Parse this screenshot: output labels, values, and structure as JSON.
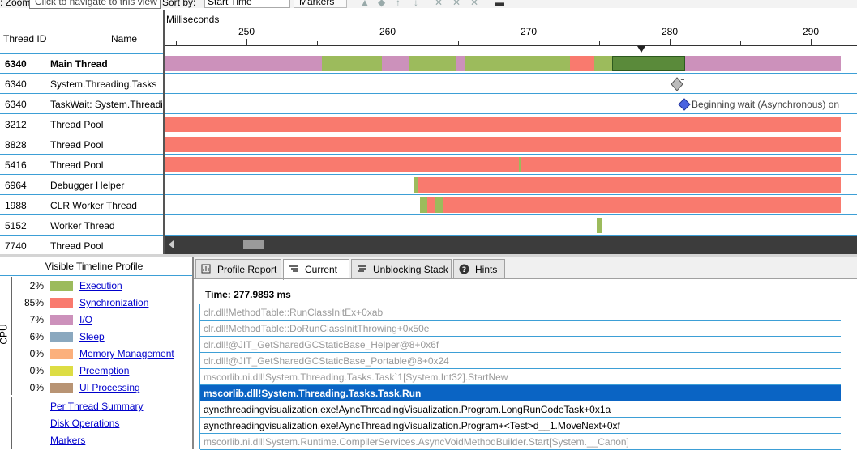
{
  "toolbar": {
    "zoom_label": ": Zoom",
    "tooltip": "Click to navigate to this view",
    "sort_label": "Sort by:",
    "sort_value": "Start Time",
    "markers_label": "Markers"
  },
  "timeline": {
    "col_thread_id": "Thread ID",
    "col_name": "Name",
    "axis_unit": "Milliseconds",
    "ticks": [
      "250",
      "260",
      "270",
      "280",
      "290"
    ],
    "threads": [
      {
        "id": "6340",
        "name": "Main Thread",
        "bold": true
      },
      {
        "id": "6340",
        "name": "System.Threading.Tasks"
      },
      {
        "id": "6340",
        "name": "TaskWait: System.Threading.Tasks"
      },
      {
        "id": "3212",
        "name": "Thread Pool"
      },
      {
        "id": "8828",
        "name": "Thread Pool"
      },
      {
        "id": "5416",
        "name": "Thread Pool"
      },
      {
        "id": "6964",
        "name": "Debugger Helper"
      },
      {
        "id": "1988",
        "name": "CLR Worker Thread"
      },
      {
        "id": "5152",
        "name": "Worker Thread"
      },
      {
        "id": "7740",
        "name": "Thread Pool"
      }
    ],
    "marker_text": "Beginning wait (Asynchronous) on"
  },
  "colors": {
    "execution": "#9cbb5c",
    "synchronization": "#f97a6e",
    "io": "#cc91bb",
    "sleep": "#8aa8bf",
    "memory": "#fbb07c",
    "preemption": "#dddd44",
    "ui": "#b89474",
    "selected_exec": "#5a8a3a"
  },
  "profile": {
    "title": "Visible Timeline Profile",
    "cpu_label": "CPU",
    "items": [
      {
        "pct": "2%",
        "label": "Execution",
        "color": "#9cbb5c"
      },
      {
        "pct": "85%",
        "label": "Synchronization",
        "color": "#f97a6e"
      },
      {
        "pct": "7%",
        "label": "I/O",
        "color": "#cc91bb"
      },
      {
        "pct": "6%",
        "label": "Sleep",
        "color": "#8aa8bf"
      },
      {
        "pct": "0%",
        "label": "Memory Management",
        "color": "#fbb07c"
      },
      {
        "pct": "0%",
        "label": "Preemption",
        "color": "#dddd44"
      },
      {
        "pct": "0%",
        "label": "UI Processing",
        "color": "#b89474"
      }
    ],
    "links": [
      "Per Thread Summary",
      "Disk Operations",
      "Markers"
    ]
  },
  "tabs": [
    {
      "label": "Profile Report",
      "icon": "report-icon"
    },
    {
      "label": "Current",
      "icon": "stack-icon"
    },
    {
      "label": "Unblocking Stack",
      "icon": "unblock-icon"
    },
    {
      "label": "Hints",
      "icon": "help-icon"
    }
  ],
  "detail": {
    "time": "Time: 277.9893 ms",
    "frames": [
      {
        "text": "clr.dll!MethodTable::RunClassInitEx+0xab",
        "style": "grey"
      },
      {
        "text": "clr.dll!MethodTable::DoRunClassInitThrowing+0x50e",
        "style": "grey"
      },
      {
        "text": "clr.dll!@JIT_GetSharedGCStaticBase_Helper@8+0x6f",
        "style": "grey"
      },
      {
        "text": "clr.dll!@JIT_GetSharedGCStaticBase_Portable@8+0x24",
        "style": "grey"
      },
      {
        "text": "mscorlib.ni.dll!System.Threading.Tasks.Task`1[System.Int32].StartNew",
        "style": "grey"
      },
      {
        "text": "mscorlib.dll!System.Threading.Tasks.Task.Run",
        "style": "sel"
      },
      {
        "text": "ayncthreadingvisualization.exe!AyncThreadingVisualization.Program.LongRunCodeTask+0x1a",
        "style": "normal"
      },
      {
        "text": "ayncthreadingvisualization.exe!AyncThreadingVisualization.Program+<Test>d__1.MoveNext+0xf",
        "style": "normal"
      },
      {
        "text": "mscorlib.ni.dll!System.Runtime.CompilerServices.AsyncVoidMethodBuilder.Start[System.__Canon]",
        "style": "grey"
      }
    ]
  }
}
